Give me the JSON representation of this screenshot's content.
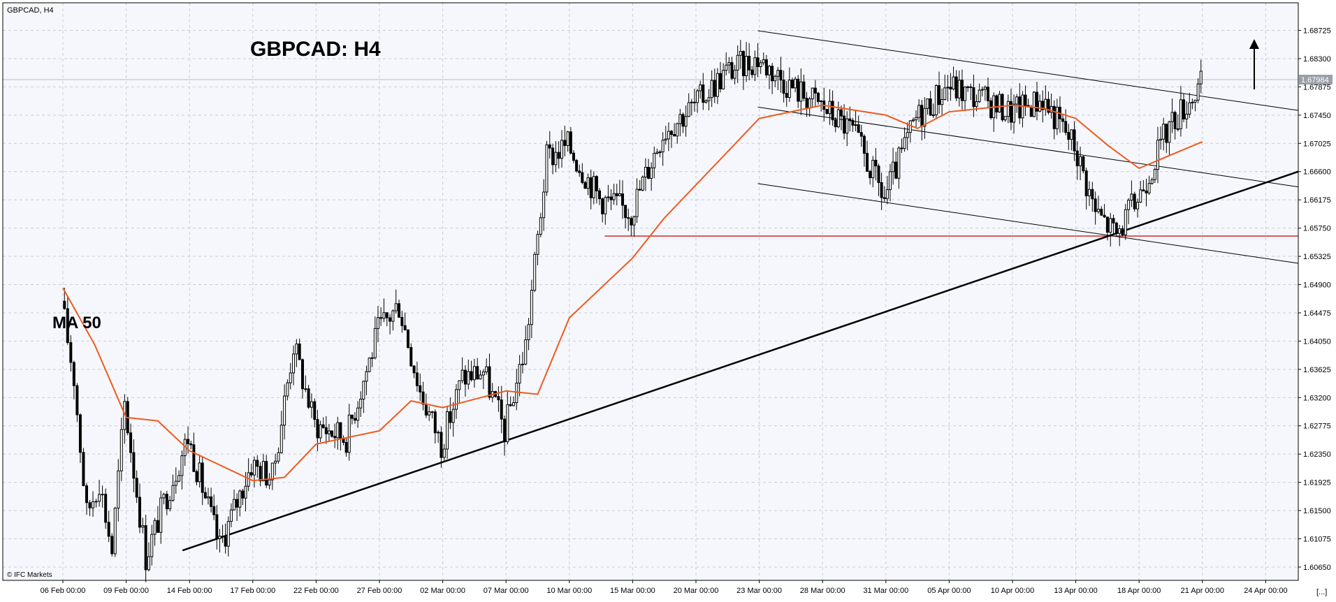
{
  "window": {
    "symbol_label": "GBPCAD, H4",
    "watermark": "© IFC Markets",
    "corner_label": "[...]"
  },
  "annotations": {
    "title": "GBPCAD: H4",
    "ma_label": "MA 50",
    "current_price_tag": "1.67984"
  },
  "colors": {
    "background": "#f5f7fc",
    "grid": "#c8ccd4",
    "candle": "#000000",
    "ma": "#f05a1e",
    "support_line": "#cc0000",
    "trend_line": "#000000",
    "channel": "#000000"
  },
  "chart_data": {
    "type": "candlestick",
    "symbol": "GBPCAD",
    "timeframe": "H4",
    "x_ticks": [
      "06 Feb 00:00",
      "09 Feb 00:00",
      "14 Feb 00:00",
      "17 Feb 00:00",
      "22 Feb 00:00",
      "27 Feb 00:00",
      "02 Mar 00:00",
      "07 Mar 00:00",
      "10 Mar 00:00",
      "15 Mar 00:00",
      "20 Mar 00:00",
      "23 Mar 00:00",
      "28 Mar 00:00",
      "31 Mar 00:00",
      "05 Apr 00:00",
      "10 Apr 00:00",
      "13 Apr 00:00",
      "18 Apr 00:00",
      "21 Apr 00:00",
      "24 Apr 00:00"
    ],
    "y_ticks": [
      "1.68725",
      "1.68300",
      "1.67875",
      "1.67450",
      "1.67025",
      "1.66600",
      "1.66175",
      "1.65750",
      "1.65325",
      "1.64900",
      "1.64475",
      "1.64050",
      "1.63625",
      "1.63200",
      "1.62775",
      "1.62350",
      "1.61925",
      "1.61500",
      "1.61075",
      "1.60650"
    ],
    "ylim": [
      1.6045,
      1.6914
    ],
    "grid": true,
    "price_path": [
      {
        "x": "06 Feb 00:00",
        "price": 1.6465
      },
      {
        "x": "",
        "price": 1.635
      },
      {
        "x": "",
        "price": 1.6145
      },
      {
        "x": "",
        "price": 1.6195
      },
      {
        "x": "",
        "price": 1.609
      },
      {
        "x": "09 Feb 00:00",
        "price": 1.631
      },
      {
        "x": "",
        "price": 1.608
      },
      {
        "x": "",
        "price": 1.6175
      },
      {
        "x": "14 Feb 00:00",
        "price": 1.626
      },
      {
        "x": "",
        "price": 1.6095
      },
      {
        "x": "17 Feb 00:00",
        "price": 1.622
      },
      {
        "x": "",
        "price": 1.62
      },
      {
        "x": "",
        "price": 1.64
      },
      {
        "x": "22 Feb 00:00",
        "price": 1.628
      },
      {
        "x": "",
        "price": 1.626
      },
      {
        "x": "27 Feb 00:00",
        "price": 1.642
      },
      {
        "x": "",
        "price": 1.646
      },
      {
        "x": "",
        "price": 1.633
      },
      {
        "x": "02 Mar 00:00",
        "price": 1.625
      },
      {
        "x": "",
        "price": 1.635
      },
      {
        "x": "",
        "price": 1.636
      },
      {
        "x": "07 Mar 00:00",
        "price": 1.627
      },
      {
        "x": "",
        "price": 1.64
      },
      {
        "x": "",
        "price": 1.668
      },
      {
        "x": "10 Mar 00:00",
        "price": 1.67
      },
      {
        "x": "",
        "price": 1.662
      },
      {
        "x": "15 Mar 00:00",
        "price": 1.66
      },
      {
        "x": "",
        "price": 1.672
      },
      {
        "x": "20 Mar 00:00",
        "price": 1.676
      },
      {
        "x": "",
        "price": 1.681
      },
      {
        "x": "23 Mar 00:00",
        "price": 1.683
      },
      {
        "x": "",
        "price": 1.679
      },
      {
        "x": "28 Mar 00:00",
        "price": 1.676
      },
      {
        "x": "",
        "price": 1.672
      },
      {
        "x": "31 Mar 00:00",
        "price": 1.662
      },
      {
        "x": "",
        "price": 1.674
      },
      {
        "x": "05 Apr 00:00",
        "price": 1.679
      },
      {
        "x": "",
        "price": 1.677
      },
      {
        "x": "10 Apr 00:00",
        "price": 1.675
      },
      {
        "x": "",
        "price": 1.677
      },
      {
        "x": "13 Apr 00:00",
        "price": 1.67
      },
      {
        "x": "",
        "price": 1.66
      },
      {
        "x": "",
        "price": 1.6565
      },
      {
        "x": "18 Apr 00:00",
        "price": 1.662
      },
      {
        "x": "",
        "price": 1.673
      },
      {
        "x": "21 Apr 00:00",
        "price": 1.679
      }
    ],
    "ma50_path": [
      {
        "x": "06 Feb 00:00",
        "price": 1.6485
      },
      {
        "x": "",
        "price": 1.64
      },
      {
        "x": "09 Feb 00:00",
        "price": 1.629
      },
      {
        "x": "",
        "price": 1.6285
      },
      {
        "x": "14 Feb 00:00",
        "price": 1.624
      },
      {
        "x": "17 Feb 00:00",
        "price": 1.6195
      },
      {
        "x": "",
        "price": 1.62
      },
      {
        "x": "22 Feb 00:00",
        "price": 1.625
      },
      {
        "x": "27 Feb 00:00",
        "price": 1.627
      },
      {
        "x": "",
        "price": 1.6315
      },
      {
        "x": "02 Mar 00:00",
        "price": 1.6305
      },
      {
        "x": "07 Mar 00:00",
        "price": 1.633
      },
      {
        "x": "",
        "price": 1.6325
      },
      {
        "x": "10 Mar 00:00",
        "price": 1.644
      },
      {
        "x": "15 Mar 00:00",
        "price": 1.653
      },
      {
        "x": "",
        "price": 1.659
      },
      {
        "x": "20 Mar 00:00",
        "price": 1.664
      },
      {
        "x": "23 Mar 00:00",
        "price": 1.674
      },
      {
        "x": "28 Mar 00:00",
        "price": 1.676
      },
      {
        "x": "31 Mar 00:00",
        "price": 1.6745
      },
      {
        "x": "",
        "price": 1.6725
      },
      {
        "x": "05 Apr 00:00",
        "price": 1.675
      },
      {
        "x": "10 Apr 00:00",
        "price": 1.676
      },
      {
        "x": "",
        "price": 1.6755
      },
      {
        "x": "13 Apr 00:00",
        "price": 1.674
      },
      {
        "x": "",
        "price": 1.67
      },
      {
        "x": "18 Apr 00:00",
        "price": 1.6665
      },
      {
        "x": "21 Apr 00:00",
        "price": 1.6705
      }
    ],
    "support_level": 1.6563,
    "current_price": 1.67984,
    "trend_line": {
      "start": {
        "x": "14 Feb 00:00",
        "price": 1.609
      },
      "end": {
        "x": "24 Apr 00:00",
        "price": 1.666
      }
    },
    "channel_lines": [
      {
        "start": {
          "x": "23 Mar 00:00",
          "price": 1.6872
        },
        "end": {
          "x": "24 Apr 00:00",
          "price": 1.6752
        }
      },
      {
        "start": {
          "x": "23 Mar 00:00",
          "price": 1.6757
        },
        "end": {
          "x": "24 Apr 00:00",
          "price": 1.6637
        }
      },
      {
        "start": {
          "x": "23 Mar 00:00",
          "price": 1.6642
        },
        "end": {
          "x": "24 Apr 00:00",
          "price": 1.6522
        }
      }
    ]
  }
}
